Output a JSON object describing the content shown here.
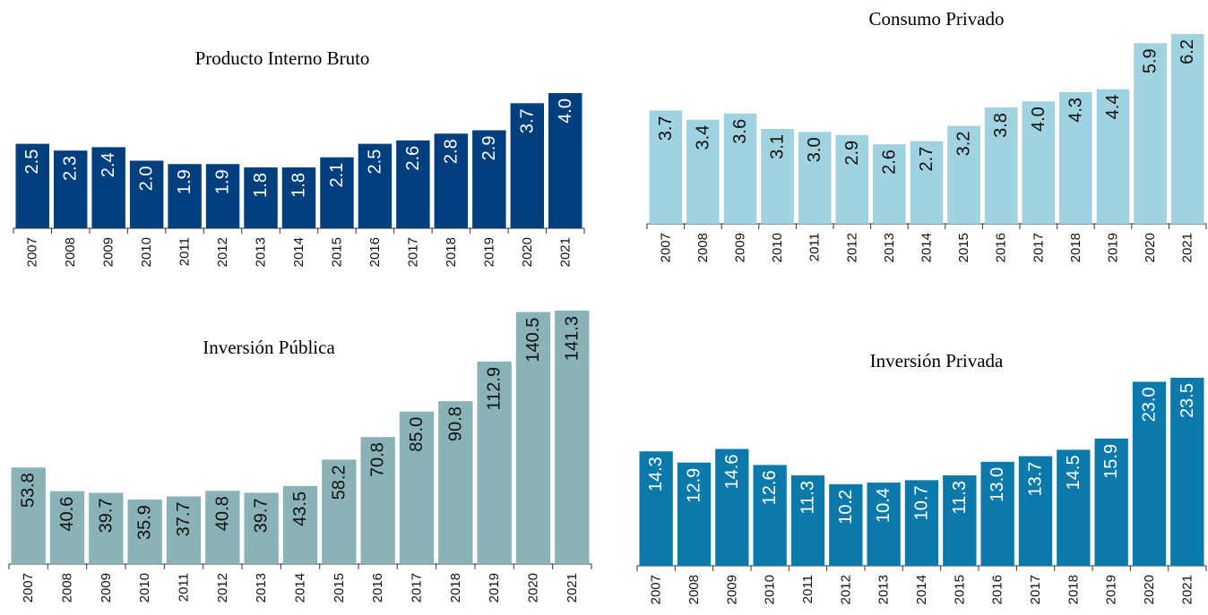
{
  "chart_data": [
    {
      "type": "bar",
      "title": "Producto Interno Bruto",
      "color": "#003f7d",
      "label_color": "#ffffff",
      "categories": [
        "2007",
        "2008",
        "2009",
        "2010",
        "2011",
        "2012",
        "2013",
        "2014",
        "2015",
        "2016",
        "2017",
        "2018",
        "2019",
        "2020",
        "2021"
      ],
      "values": [
        2.5,
        2.3,
        2.4,
        2.0,
        1.9,
        1.9,
        1.8,
        1.8,
        2.1,
        2.5,
        2.6,
        2.8,
        2.9,
        3.7,
        4.0
      ],
      "value_labels": [
        "2.5",
        "2.3",
        "2.4",
        "2.0",
        "1.9",
        "1.9",
        "1.8",
        "1.8",
        "2.1",
        "2.5",
        "2.6",
        "2.8",
        "2.9",
        "3.7",
        "4.0"
      ]
    },
    {
      "type": "bar",
      "title": "Consumo Privado",
      "color": "#a0d2e0",
      "label_color": "#111111",
      "categories": [
        "2007",
        "2008",
        "2009",
        "2010",
        "2011",
        "2012",
        "2013",
        "2014",
        "2015",
        "2016",
        "2017",
        "2018",
        "2019",
        "2020",
        "2021"
      ],
      "values": [
        3.7,
        3.4,
        3.6,
        3.1,
        3.0,
        2.9,
        2.6,
        2.7,
        3.2,
        3.8,
        4.0,
        4.3,
        4.4,
        5.9,
        6.2
      ],
      "value_labels": [
        "3.7",
        "3.4",
        "3.6",
        "3.1",
        "3.0",
        "2.9",
        "2.6",
        "2.7",
        "3.2",
        "3.8",
        "4.0",
        "4.3",
        "4.4",
        "5.9",
        "6.2"
      ]
    },
    {
      "type": "bar",
      "title": "Inversión Pública",
      "color": "#8ab3b8",
      "label_color": "#111111",
      "categories": [
        "2007",
        "2008",
        "2009",
        "2010",
        "2011",
        "2012",
        "2013",
        "2014",
        "2015",
        "2016",
        "2017",
        "2018",
        "2019",
        "2020",
        "2021"
      ],
      "values": [
        53.8,
        40.6,
        39.7,
        35.9,
        37.7,
        40.8,
        39.7,
        43.5,
        58.2,
        70.8,
        85.0,
        90.8,
        112.9,
        140.5,
        141.3
      ],
      "value_labels": [
        "53.8",
        "40.6",
        "39.7",
        "35.9",
        "37.7",
        "40.8",
        "39.7",
        "43.5",
        "58.2",
        "70.8",
        "85.0",
        "90.8",
        "112.9",
        "140.5",
        "141.3"
      ]
    },
    {
      "type": "bar",
      "title": "Inversión Privada",
      "color": "#0b7aab",
      "label_color": "#ffffff",
      "categories": [
        "2007",
        "2008",
        "2009",
        "2010",
        "2011",
        "2012",
        "2013",
        "2014",
        "2015",
        "2016",
        "2017",
        "2018",
        "2019",
        "2020",
        "2021"
      ],
      "values": [
        14.3,
        12.9,
        14.6,
        12.6,
        11.3,
        10.2,
        10.4,
        10.7,
        11.3,
        13.0,
        13.7,
        14.5,
        15.9,
        23.0,
        23.5
      ],
      "value_labels": [
        "14.3",
        "12.9",
        "14.6",
        "12.6",
        "11.3",
        "10.2",
        "10.4",
        "10.7",
        "11.3",
        "13.0",
        "13.7",
        "14.5",
        "15.9",
        "23.0",
        "23.5"
      ]
    }
  ]
}
